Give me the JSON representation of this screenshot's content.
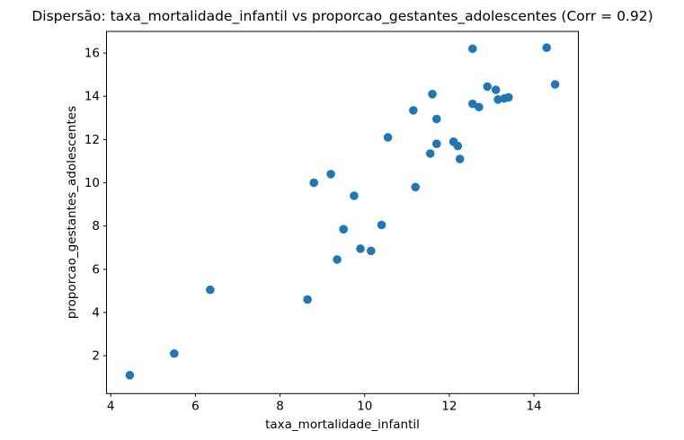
{
  "chart_data": {
    "type": "scatter",
    "title": "Dispersão: taxa_mortalidade_infantil vs proporcao_gestantes_adolescentes (Corr = 0.92)",
    "xlabel": "taxa_mortalidade_infantil",
    "ylabel": "proporcao_gestantes_adolescentes",
    "correlation": 0.92,
    "xlim": [
      3.9,
      15.05
    ],
    "ylim": [
      0.25,
      17.0
    ],
    "xticks": [
      4,
      6,
      8,
      10,
      12,
      14
    ],
    "yticks": [
      2,
      4,
      6,
      8,
      10,
      12,
      14,
      16
    ],
    "grid": false,
    "legend": null,
    "marker_color": "#1f77b4",
    "axis_color": "#000000",
    "background_color": "#ffffff",
    "points": [
      [
        4.45,
        1.1
      ],
      [
        5.5,
        2.1
      ],
      [
        6.35,
        5.05
      ],
      [
        8.65,
        4.6
      ],
      [
        8.8,
        10.0
      ],
      [
        9.2,
        10.4
      ],
      [
        9.35,
        6.45
      ],
      [
        9.5,
        7.85
      ],
      [
        9.75,
        9.4
      ],
      [
        9.9,
        6.95
      ],
      [
        10.15,
        6.85
      ],
      [
        10.4,
        8.05
      ],
      [
        10.55,
        12.1
      ],
      [
        11.15,
        13.35
      ],
      [
        11.2,
        9.8
      ],
      [
        11.55,
        11.35
      ],
      [
        11.6,
        14.1
      ],
      [
        11.7,
        12.95
      ],
      [
        11.7,
        11.8
      ],
      [
        12.1,
        11.9
      ],
      [
        12.2,
        11.7
      ],
      [
        12.25,
        11.1
      ],
      [
        12.55,
        16.2
      ],
      [
        12.55,
        13.65
      ],
      [
        12.7,
        13.5
      ],
      [
        12.9,
        14.45
      ],
      [
        13.1,
        14.3
      ],
      [
        13.15,
        13.85
      ],
      [
        13.3,
        13.9
      ],
      [
        13.4,
        13.95
      ],
      [
        14.3,
        16.25
      ],
      [
        14.5,
        14.55
      ]
    ]
  }
}
